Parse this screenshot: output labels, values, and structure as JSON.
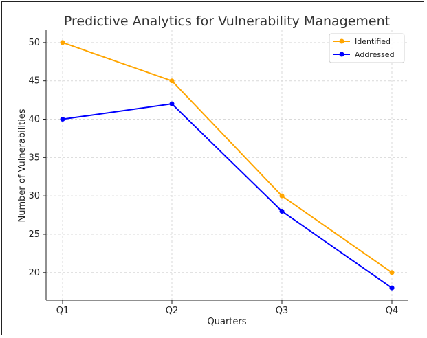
{
  "chart_data": {
    "type": "line",
    "title": "Predictive Analytics for Vulnerability Management",
    "xlabel": "Quarters",
    "ylabel": "Number of Vulnerabilities",
    "categories": [
      "Q1",
      "Q2",
      "Q3",
      "Q4"
    ],
    "series": [
      {
        "name": "Identified",
        "values": [
          50,
          45,
          30,
          20
        ],
        "color": "#FFA500"
      },
      {
        "name": "Addressed",
        "values": [
          40,
          42,
          28,
          18
        ],
        "color": "#0000FF"
      }
    ],
    "yticks": [
      "20",
      "25",
      "30",
      "35",
      "40",
      "45",
      "50"
    ],
    "ylim": [
      16.4,
      51.6
    ],
    "grid": true,
    "legend_position": "top-right"
  }
}
